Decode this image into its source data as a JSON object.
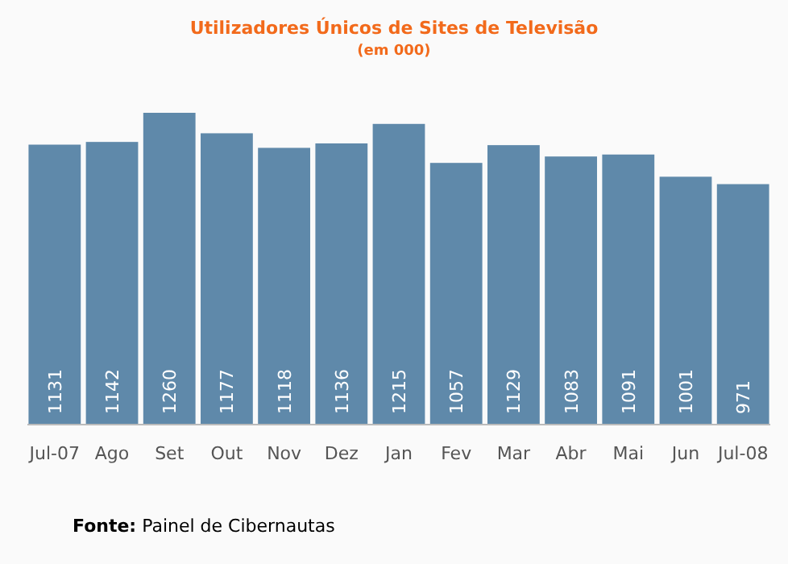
{
  "chart_data": {
    "type": "bar",
    "title": "Utilizadores Únicos de Sites de Televisão",
    "subtitle": "(em 000)",
    "categories": [
      "Jul-07",
      "Ago",
      "Set",
      "Out",
      "Nov",
      "Dez",
      "Jan",
      "Fev",
      "Mar",
      "Abr",
      "Mai",
      "Jun",
      "Jul-08"
    ],
    "values": [
      1131,
      1142,
      1260,
      1177,
      1118,
      1136,
      1215,
      1057,
      1129,
      1083,
      1091,
      1001,
      971
    ],
    "color": "#5f89aa",
    "data_labels": true,
    "annotations": [
      "Fonte: Painel de Cibernautas"
    ]
  }
}
